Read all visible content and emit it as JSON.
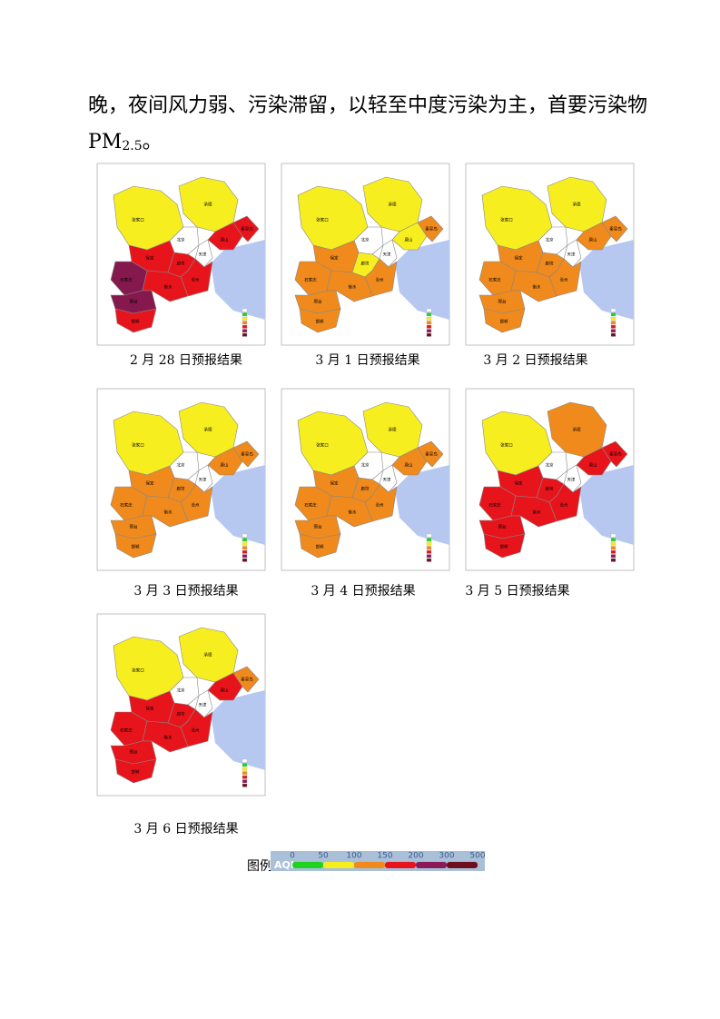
{
  "text": {
    "line1": "晚，夜间风力弱、污染滞留，以轻至中度污染为主，首要污染物",
    "pm": "PM",
    "sub": "2.5",
    "end": "。"
  },
  "city_labels": [
    "张家口",
    "承德",
    "北京",
    "天津",
    "唐山",
    "秦皇岛",
    "保定",
    "廊坊",
    "沧州",
    "石家庄",
    "衡水",
    "邢台",
    "邯郸"
  ],
  "maps": [
    {
      "caption": "2 月 28 日预报结果",
      "colors": [
        "#f7ee1f",
        "#f7ee1f",
        "#ffffff",
        "#ffffff",
        "#e8141c",
        "#e8141c",
        "#e8141c",
        "#e8141c",
        "#e8141c",
        "#85184c",
        "#e8141c",
        "#85184c",
        "#e8141c"
      ]
    },
    {
      "caption": "3 月 1 日预报结果",
      "colors": [
        "#f7ee1f",
        "#f7ee1f",
        "#ffffff",
        "#ffffff",
        "#f7ee1f",
        "#f08a1c",
        "#f08a1c",
        "#f7ee1f",
        "#f08a1c",
        "#f08a1c",
        "#f08a1c",
        "#f08a1c",
        "#f08a1c"
      ]
    },
    {
      "caption": "3 月 2 日预报结果",
      "colors": [
        "#f7ee1f",
        "#f7ee1f",
        "#ffffff",
        "#ffffff",
        "#f08a1c",
        "#f08a1c",
        "#f08a1c",
        "#f08a1c",
        "#f08a1c",
        "#f08a1c",
        "#f08a1c",
        "#f08a1c",
        "#f08a1c"
      ]
    },
    {
      "caption": "3 月 3 日预报结果",
      "colors": [
        "#f7ee1f",
        "#f7ee1f",
        "#ffffff",
        "#ffffff",
        "#f08a1c",
        "#f08a1c",
        "#f08a1c",
        "#f08a1c",
        "#f08a1c",
        "#f08a1c",
        "#f08a1c",
        "#f08a1c",
        "#f08a1c"
      ]
    },
    {
      "caption": "3 月 4 日预报结果",
      "colors": [
        "#f7ee1f",
        "#f7ee1f",
        "#ffffff",
        "#ffffff",
        "#f08a1c",
        "#f08a1c",
        "#f08a1c",
        "#f08a1c",
        "#f08a1c",
        "#f08a1c",
        "#f08a1c",
        "#f08a1c",
        "#f08a1c"
      ]
    },
    {
      "caption": "3 月 5 日预报结果",
      "colors": [
        "#f7ee1f",
        "#f08a1c",
        "#ffffff",
        "#ffffff",
        "#e8141c",
        "#e8141c",
        "#e8141c",
        "#e8141c",
        "#e8141c",
        "#e8141c",
        "#e8141c",
        "#e8141c",
        "#e8141c"
      ]
    },
    {
      "caption": "3 月 6 日预报结果",
      "colors": [
        "#f7ee1f",
        "#f7ee1f",
        "#ffffff",
        "#ffffff",
        "#e8141c",
        "#f08a1c",
        "#e8141c",
        "#e8141c",
        "#e8141c",
        "#e8141c",
        "#e8141c",
        "#e8141c",
        "#e8141c"
      ]
    }
  ],
  "legend": {
    "title": "图例",
    "aqi": "AQI",
    "ticks": [
      "0",
      "50",
      "100",
      "150",
      "200",
      "300",
      "500"
    ],
    "colors": [
      "#1fd21f",
      "#f7ee1f",
      "#f08a1c",
      "#e8141c",
      "#8b1a5a",
      "#6e0e1e"
    ]
  }
}
